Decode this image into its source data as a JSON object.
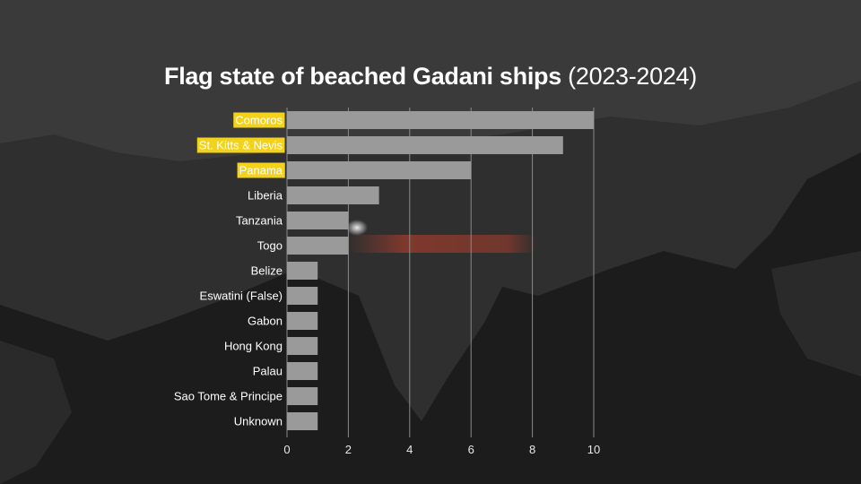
{
  "title": {
    "main": "Flag state of beached Gadani ships",
    "suffix": "(2023-2024)"
  },
  "colors": {
    "bar": "#9a9a9a",
    "highlight": "#f2d21b",
    "grid": "#8a8a8a",
    "text": "#ffffff",
    "background": "#1c1c1c"
  },
  "chart_data": {
    "type": "bar",
    "orientation": "horizontal",
    "title": "Flag state of beached Gadani ships (2023-2024)",
    "xlabel": "",
    "ylabel": "",
    "xlim": [
      0,
      10
    ],
    "xticks": [
      0,
      2,
      4,
      6,
      8,
      10
    ],
    "grid": true,
    "categories": [
      "Comoros",
      "St. Kitts & Nevis",
      "Panama",
      "Liberia",
      "Tanzania",
      "Togo",
      "Belize",
      "Eswatini (False)",
      "Gabon",
      "Hong Kong",
      "Palau",
      "Sao Tome & Principe",
      "Unknown"
    ],
    "values": [
      10,
      9,
      6,
      3,
      2,
      2,
      1,
      1,
      1,
      1,
      1,
      1,
      1
    ],
    "highlighted": [
      "Comoros",
      "St. Kitts & Nevis",
      "Panama"
    ]
  }
}
